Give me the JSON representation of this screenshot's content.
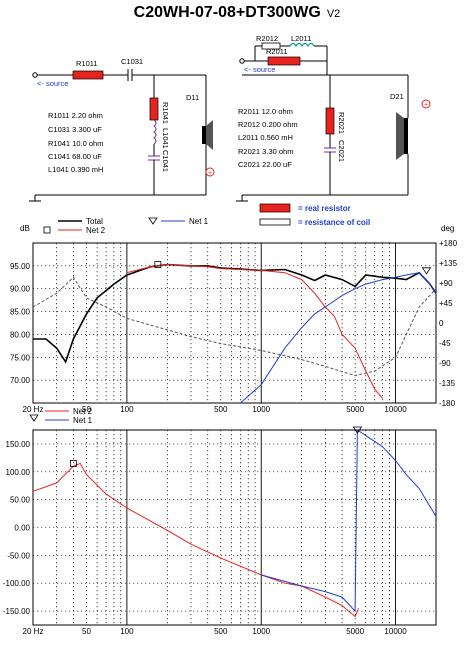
{
  "title": "C20WH-07-08+DT300WG",
  "version": "V2",
  "schematic": {
    "source_label_1": "<- source",
    "source_label_2": "<- source",
    "woofer": {
      "r1011_label": "R1011",
      "c1031_label": "C1031",
      "r1041_label": "R1041",
      "l1041_label": "L1041",
      "c1041_label": "C1041",
      "driver_label": "D11",
      "values": [
        "R1011   2.20 ohm",
        "C1031  3.300 uF",
        "R1041   10.0 ohm",
        "C1041  68.00 uF",
        "L1041  0.390 mH"
      ]
    },
    "tweeter": {
      "r2012_label": "R2012",
      "l2011_label": "L2011",
      "r2011_label": "R2011",
      "r2021_label": "R2021",
      "c2021_label": "C2021",
      "driver_label": "D21",
      "values": [
        "R2011    12.0 ohm",
        "R2012  0.200 ohm",
        "L2011  0.560 mH",
        "R2021    3.30 ohm",
        "C2021  22.00 uF"
      ]
    },
    "legend": {
      "real_resistor": "= real resistor",
      "coil_resistance": "= resistance of coil"
    }
  },
  "chart_data": [
    {
      "type": "line",
      "x_scale": "log",
      "xlim": [
        20,
        20000
      ],
      "ylim": [
        65,
        100
      ],
      "y2lim": [
        -180,
        180
      ],
      "ylabel": "dB",
      "y2label": "deg",
      "x_ticks": [
        "20 Hz",
        "50",
        "100",
        "500",
        "1000",
        "5000",
        "10000"
      ],
      "y_ticks": [
        "95.00",
        "90.00",
        "85.00",
        "80.00",
        "75.00",
        "70.00"
      ],
      "y2_ticks": [
        "+180",
        "+135",
        "+90",
        "+45",
        "0",
        "-45",
        "-90",
        "-135",
        "-180"
      ],
      "legend": [
        "Total",
        "Net 2",
        "Net 1"
      ],
      "series": [
        {
          "name": "Total",
          "color": "#000000",
          "x": [
            20,
            25,
            30,
            35,
            40,
            50,
            60,
            80,
            100,
            150,
            200,
            300,
            400,
            500,
            700,
            1000,
            1500,
            2000,
            2500,
            3000,
            4000,
            5000,
            6000,
            8000,
            10000,
            12000,
            15000,
            18000,
            20000
          ],
          "y": [
            79,
            79,
            77,
            74,
            79,
            84.5,
            88,
            91,
            93,
            94.8,
            95.3,
            95,
            95,
            94.5,
            94.3,
            94,
            94.2,
            93,
            91.8,
            93,
            92,
            90.5,
            93,
            92.5,
            92.3,
            92,
            93.5,
            91,
            89
          ]
        },
        {
          "name": "Net 2",
          "color": "#e8231e",
          "x": [
            100,
            150,
            200,
            300,
            400,
            500,
            700,
            1000,
            1500,
            2000,
            2500,
            3000,
            3500,
            4000,
            5000,
            6000,
            7000,
            8000
          ],
          "y": [
            93.5,
            94.8,
            95.3,
            95,
            94.8,
            94.4,
            94.2,
            94,
            93.5,
            92,
            89,
            86,
            84,
            80,
            77,
            72,
            68,
            66
          ]
        },
        {
          "name": "Net 1",
          "color": "#1f3fd0",
          "x": [
            700,
            1000,
            1500,
            2000,
            2500,
            3000,
            4000,
            5000,
            6000,
            8000,
            10000,
            12000,
            15000,
            18000,
            20000
          ],
          "y": [
            65,
            69,
            77,
            81.5,
            84.5,
            86,
            88.5,
            90,
            91,
            92,
            92.5,
            93,
            93.5,
            91,
            89
          ]
        },
        {
          "name": "phase",
          "color": "#555555",
          "x": [
            20,
            30,
            40,
            50,
            70,
            100,
            200,
            300,
            500,
            1000,
            2000,
            3000,
            5000,
            7000,
            10000,
            15000,
            20000
          ],
          "y": [
            86,
            89,
            92.5,
            88,
            86,
            83.5,
            81,
            79.5,
            78,
            76.5,
            74.5,
            73,
            71,
            72,
            75,
            86,
            90
          ]
        }
      ]
    },
    {
      "type": "line",
      "x_scale": "log",
      "xlim": [
        20,
        20000
      ],
      "ylim": [
        -175,
        175
      ],
      "x_ticks": [
        "20 Hz",
        "50",
        "100",
        "500",
        "1000",
        "5000",
        "10000"
      ],
      "y_ticks": [
        "150.00",
        "100.00",
        "50.00",
        "0.00",
        "-50.00",
        "-100.00",
        "-150.00"
      ],
      "legend": [
        "Net 2",
        "Net 1"
      ],
      "series": [
        {
          "name": "Net 2",
          "color": "#e8231e",
          "x": [
            20,
            30,
            40,
            45,
            50,
            70,
            100,
            200,
            300,
            500,
            1000,
            1500,
            2000,
            3000,
            4000,
            5000,
            5300
          ],
          "y": [
            65,
            80,
            110,
            115,
            95,
            60,
            35,
            -5,
            -30,
            -55,
            -85,
            -100,
            -105,
            -125,
            -140,
            -160,
            -145
          ]
        },
        {
          "name": "Net 1",
          "color": "#1f3fd0",
          "x": [
            1000,
            2000,
            3000,
            4000,
            5000,
            5200,
            6000,
            8000,
            10000,
            12000,
            15000,
            20000
          ],
          "y": [
            -85,
            -105,
            -115,
            -125,
            -150,
            175,
            165,
            145,
            120,
            95,
            70,
            20
          ]
        }
      ]
    }
  ]
}
